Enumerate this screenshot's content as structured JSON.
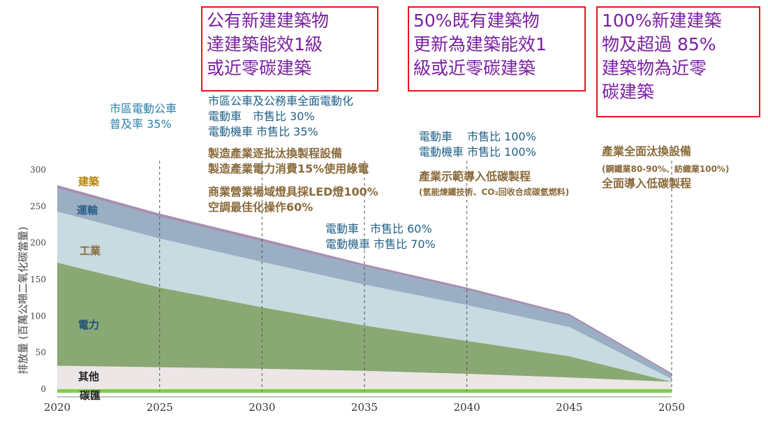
{
  "chart_data": {
    "type": "area",
    "title": "",
    "ylabel": "排放量 (百萬公噸二氧化碳當量)",
    "xlabel": "",
    "x": [
      2020,
      2025,
      2030,
      2035,
      2040,
      2045,
      2050
    ],
    "ylim": [
      0,
      300
    ],
    "xlim": [
      2020,
      2050
    ],
    "yticks": [
      0,
      50,
      100,
      150,
      200,
      250,
      300
    ],
    "xticks": [
      2020,
      2025,
      2030,
      2035,
      2040,
      2045,
      2050
    ],
    "vlines": [
      2025,
      2030,
      2035,
      2040,
      2050
    ],
    "series": [
      {
        "name": "碳匯",
        "color": "#7ed04a",
        "values": [
          -5,
          -5,
          -5,
          -5,
          -5,
          -5,
          -5
        ]
      },
      {
        "name": "其他",
        "color": "#ece6e6",
        "values": [
          32,
          30,
          28,
          25,
          21,
          16,
          10
        ]
      },
      {
        "name": "電力",
        "color": "#8aa873",
        "values": [
          141,
          109,
          84,
          62,
          45,
          29,
          0
        ]
      },
      {
        "name": "工業",
        "color": "#c7dbe0",
        "values": [
          70,
          67,
          62,
          56,
          49,
          40,
          4
        ]
      },
      {
        "name": "運輸",
        "color": "#9aaec4",
        "values": [
          32,
          30,
          28,
          25,
          21,
          15,
          6
        ]
      },
      {
        "name": "建築",
        "color": "#a78fb0",
        "values": [
          4,
          4,
          4,
          3,
          3,
          3,
          2
        ]
      }
    ]
  },
  "boxes": [
    {
      "text": "公有新建建築物\n達建築能效1級\n或近零碳建築"
    },
    {
      "text": "50%既有建築物\n更新為建築能效1\n級或近零碳建築"
    },
    {
      "text": "100%新建建築\n物及超過 85%\n建築物為近零\n碳建築"
    }
  ],
  "notes": {
    "n2025": "市區電動公車\n普及率 35%",
    "n2030a": "市區公車及公務車全面電動化\n電動車　市售比 30%\n電動機車 市售比 35%",
    "n2030b": "製造產業逐批汰換製程設備\n製造產業電力消費15%使用綠電",
    "n2030c": "商業營業場域燈具採LED燈100%\n空調最佳化操作60%",
    "n2035": "電動車　市售比 60%\n電動機車 市售比 70%",
    "n2040a": "電動車　 市售比 100%\n電動機車 市售比 100%",
    "n2040b": "產業示範導入低碳製程",
    "n2040c": "(氫能煉鐵技術、CO₂回收合成碳氫燃料)",
    "n2050a": "產業全面汰換設備",
    "n2050b": "(鋼鐵業80-90%、紡織業100%)",
    "n2050c": "全面導入低碳製程"
  },
  "series_labels": {
    "building": "建築",
    "transport": "運輸",
    "industry": "工業",
    "power": "電力",
    "other": "其他",
    "sink": "碳匯"
  },
  "label_colors": {
    "building": "#b8860b",
    "transport": "#2a5f8a",
    "industry": "#8a6a3a",
    "power": "#1f4f7a",
    "other": "#222222",
    "sink": "#222222"
  }
}
